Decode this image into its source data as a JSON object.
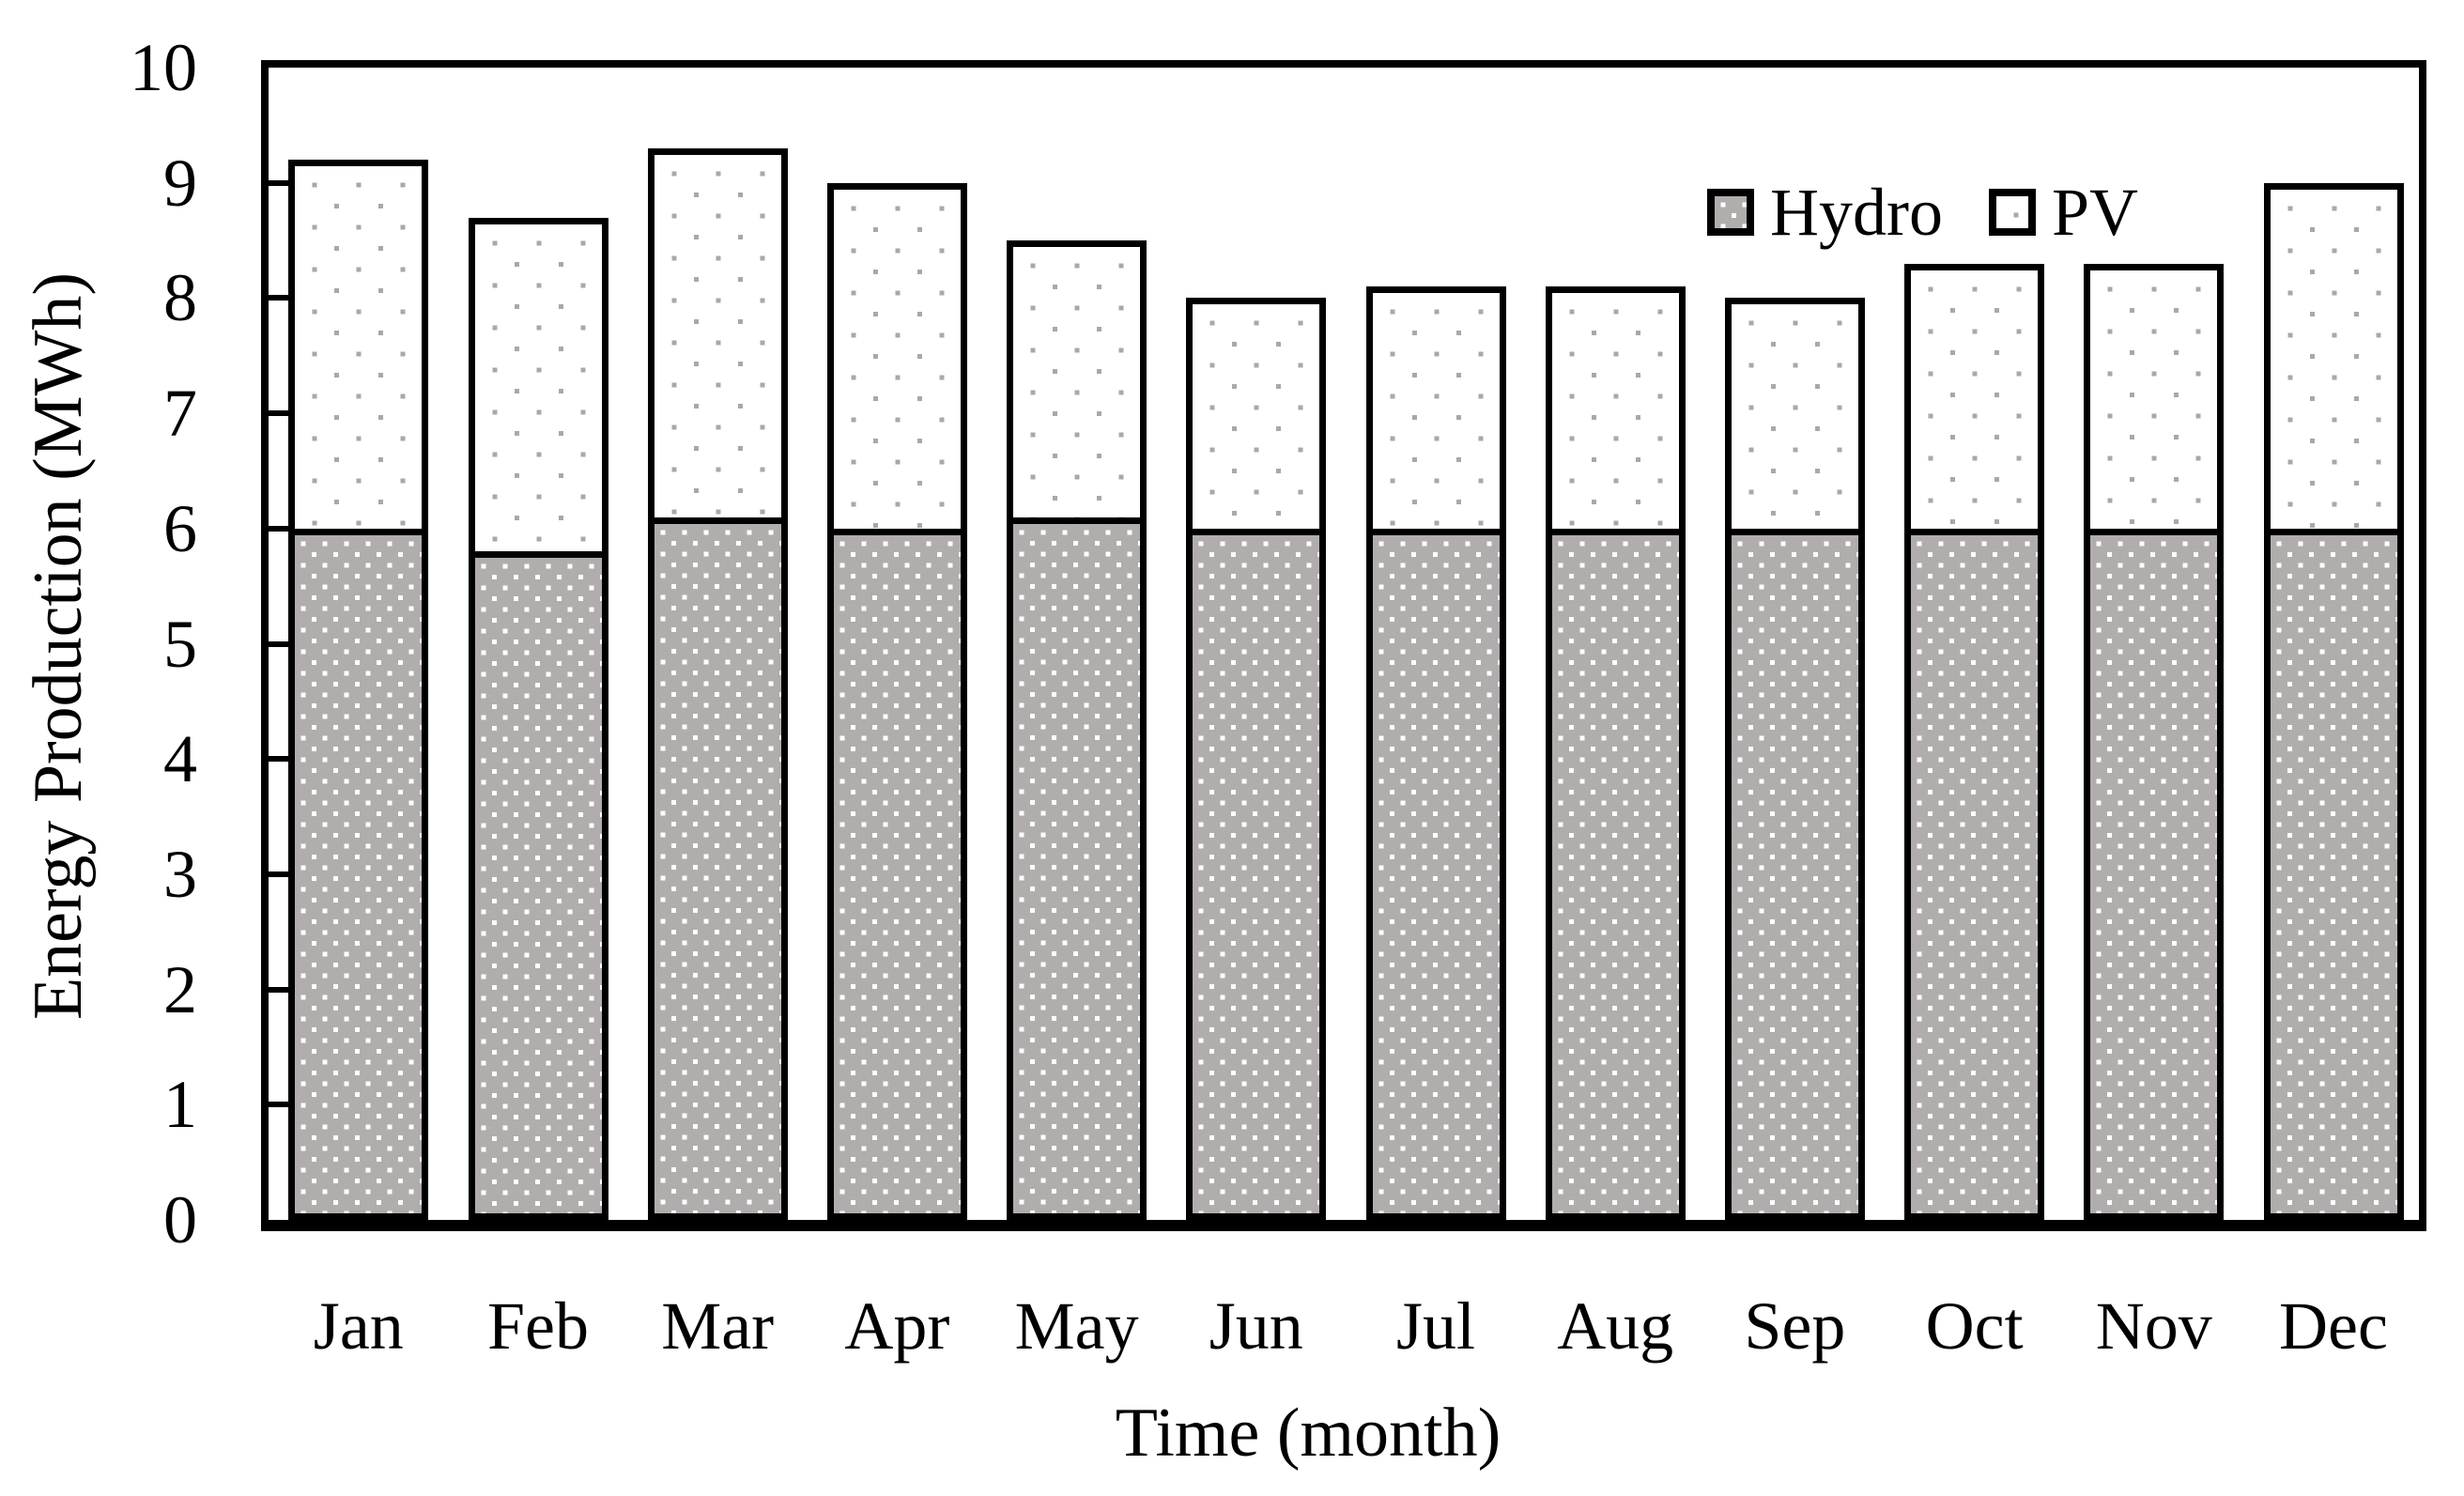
{
  "chart_data": {
    "type": "bar",
    "stacked": true,
    "categories": [
      "Jan",
      "Feb",
      "Mar",
      "Apr",
      "May",
      "Jun",
      "Jul",
      "Aug",
      "Sep",
      "Oct",
      "Nov",
      "Dec"
    ],
    "series": [
      {
        "name": "Hydro",
        "values": [
          6.0,
          5.8,
          6.1,
          6.0,
          6.1,
          6.0,
          6.0,
          6.0,
          6.0,
          6.0,
          6.0,
          6.0
        ]
      },
      {
        "name": "PV",
        "values": [
          3.2,
          2.9,
          3.2,
          3.0,
          2.4,
          2.0,
          2.1,
          2.1,
          2.0,
          2.3,
          2.3,
          3.0
        ]
      }
    ],
    "stack_totals": [
      9.2,
      8.7,
      9.3,
      9.0,
      8.5,
      8.0,
      8.1,
      8.1,
      8.0,
      8.3,
      8.3,
      9.0
    ],
    "xlabel": "Time (month)",
    "ylabel": "Energy Production (MWh)",
    "ylim": [
      0,
      10
    ],
    "y_ticks": [
      0,
      1,
      2,
      3,
      4,
      5,
      6,
      7,
      8,
      9,
      10
    ],
    "grid": false,
    "legend": {
      "position": "inside-top-right",
      "entries": [
        "Hydro",
        "PV"
      ]
    },
    "colors": {
      "outline": "#000000",
      "hydro_fill": "#b2adad",
      "hydro_dot": "#ffffff",
      "pv_fill": "#ffffff",
      "pv_dot": "#aca7a7"
    }
  }
}
